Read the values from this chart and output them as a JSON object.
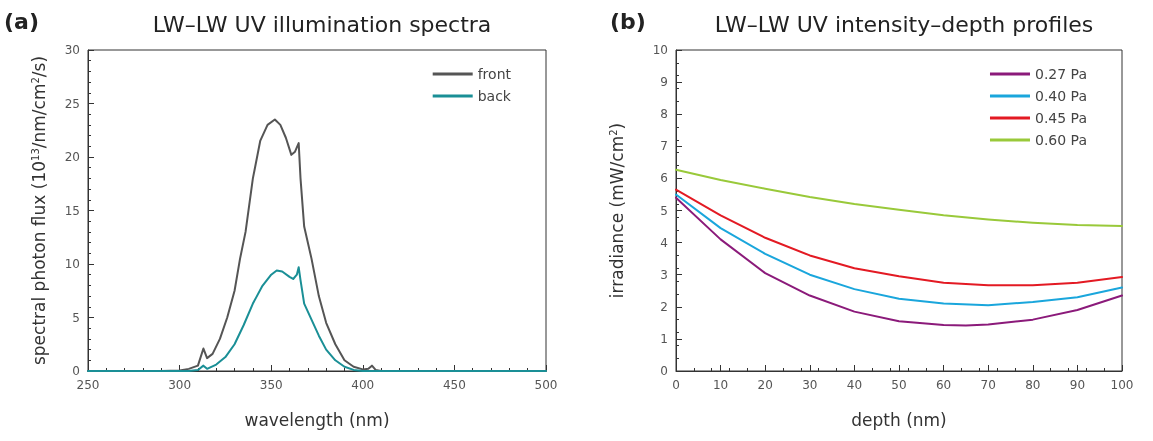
{
  "chart_data": [
    {
      "type": "line",
      "title": "LW–LW UV illumination spectra",
      "annotations": [
        "(a)"
      ],
      "xlabel": "wavelength (nm)",
      "ylabel": "spectral photon flux (10$^{13}$/nm/cm$^{2}$/s)",
      "xlim": [
        250,
        500
      ],
      "xticks": [
        250,
        300,
        350,
        400,
        450,
        500
      ],
      "ylim": [
        0,
        30
      ],
      "yticks": [
        0,
        5,
        10,
        15,
        20,
        25,
        30
      ],
      "grid": false,
      "legend": "top right",
      "line_style": "solid",
      "series": [
        {
          "name": "front",
          "color": "#555555",
          "x": [
            250,
            270,
            290,
            300,
            305,
            310,
            313,
            315,
            318,
            322,
            326,
            330,
            333,
            336,
            340,
            344,
            348,
            352,
            355,
            358,
            361,
            363,
            365,
            366,
            368,
            372,
            376,
            380,
            385,
            390,
            395,
            400,
            403,
            405,
            407,
            410,
            450,
            500
          ],
          "values": [
            0,
            0,
            0,
            0.05,
            0.2,
            0.5,
            2.1,
            1.2,
            1.6,
            3,
            5,
            7.5,
            10.5,
            13,
            18,
            21.5,
            23,
            23.5,
            23,
            21.8,
            20.2,
            20.5,
            21.3,
            18,
            13.5,
            10.5,
            7,
            4.5,
            2.5,
            1,
            0.4,
            0.15,
            0.2,
            0.5,
            0.1,
            0,
            0,
            0
          ]
        },
        {
          "name": "back",
          "color": "#1a8f96",
          "x": [
            250,
            270,
            290,
            305,
            310,
            313,
            315,
            320,
            325,
            330,
            335,
            340,
            345,
            350,
            353,
            356,
            360,
            362,
            364,
            365,
            366,
            368,
            372,
            376,
            380,
            385,
            390,
            395,
            400,
            450,
            500
          ],
          "values": [
            0,
            0,
            0,
            0,
            0.1,
            0.5,
            0.2,
            0.6,
            1.3,
            2.5,
            4.3,
            6.3,
            7.9,
            9,
            9.4,
            9.3,
            8.8,
            8.6,
            9,
            9.7,
            8.5,
            6.3,
            4.8,
            3.3,
            2,
            1,
            0.4,
            0.1,
            0,
            0,
            0
          ]
        }
      ]
    },
    {
      "type": "line",
      "title": "LW–LW UV intensity–depth profiles",
      "annotations": [
        "(b)"
      ],
      "xlabel": "depth (nm)",
      "ylabel": "irradiance (mW/cm$^{2}$)",
      "xlim": [
        0,
        100
      ],
      "xticks": [
        0,
        10,
        20,
        30,
        40,
        50,
        60,
        70,
        80,
        90,
        100
      ],
      "ylim": [
        0,
        10
      ],
      "yticks": [
        0,
        1,
        2,
        3,
        4,
        5,
        6,
        7,
        8,
        9,
        10
      ],
      "grid": false,
      "legend": "top right",
      "line_style": "solid",
      "series": [
        {
          "name": "0.27 Pa",
          "color": "#8b1a7a",
          "x": [
            0,
            10,
            20,
            30,
            40,
            50,
            60,
            65,
            70,
            80,
            90,
            100
          ],
          "values": [
            5.4,
            4.1,
            3.05,
            2.35,
            1.85,
            1.55,
            1.43,
            1.42,
            1.45,
            1.6,
            1.9,
            2.35
          ]
        },
        {
          "name": "0.40 Pa",
          "color": "#1aa6dc",
          "x": [
            0,
            10,
            20,
            30,
            40,
            50,
            60,
            70,
            80,
            90,
            100
          ],
          "values": [
            5.5,
            4.45,
            3.65,
            3,
            2.55,
            2.25,
            2.1,
            2.05,
            2.15,
            2.3,
            2.6
          ]
        },
        {
          "name": "0.45 Pa",
          "color": "#e31a23",
          "x": [
            0,
            10,
            20,
            30,
            40,
            50,
            60,
            70,
            80,
            90,
            100
          ],
          "values": [
            5.65,
            4.85,
            4.15,
            3.6,
            3.2,
            2.95,
            2.75,
            2.67,
            2.67,
            2.75,
            2.93
          ]
        },
        {
          "name": "0.60 Pa",
          "color": "#99c93a",
          "x": [
            0,
            10,
            20,
            30,
            40,
            50,
            60,
            70,
            80,
            90,
            100
          ],
          "values": [
            6.27,
            5.95,
            5.68,
            5.42,
            5.2,
            5.02,
            4.85,
            4.72,
            4.62,
            4.55,
            4.52
          ]
        }
      ]
    }
  ]
}
